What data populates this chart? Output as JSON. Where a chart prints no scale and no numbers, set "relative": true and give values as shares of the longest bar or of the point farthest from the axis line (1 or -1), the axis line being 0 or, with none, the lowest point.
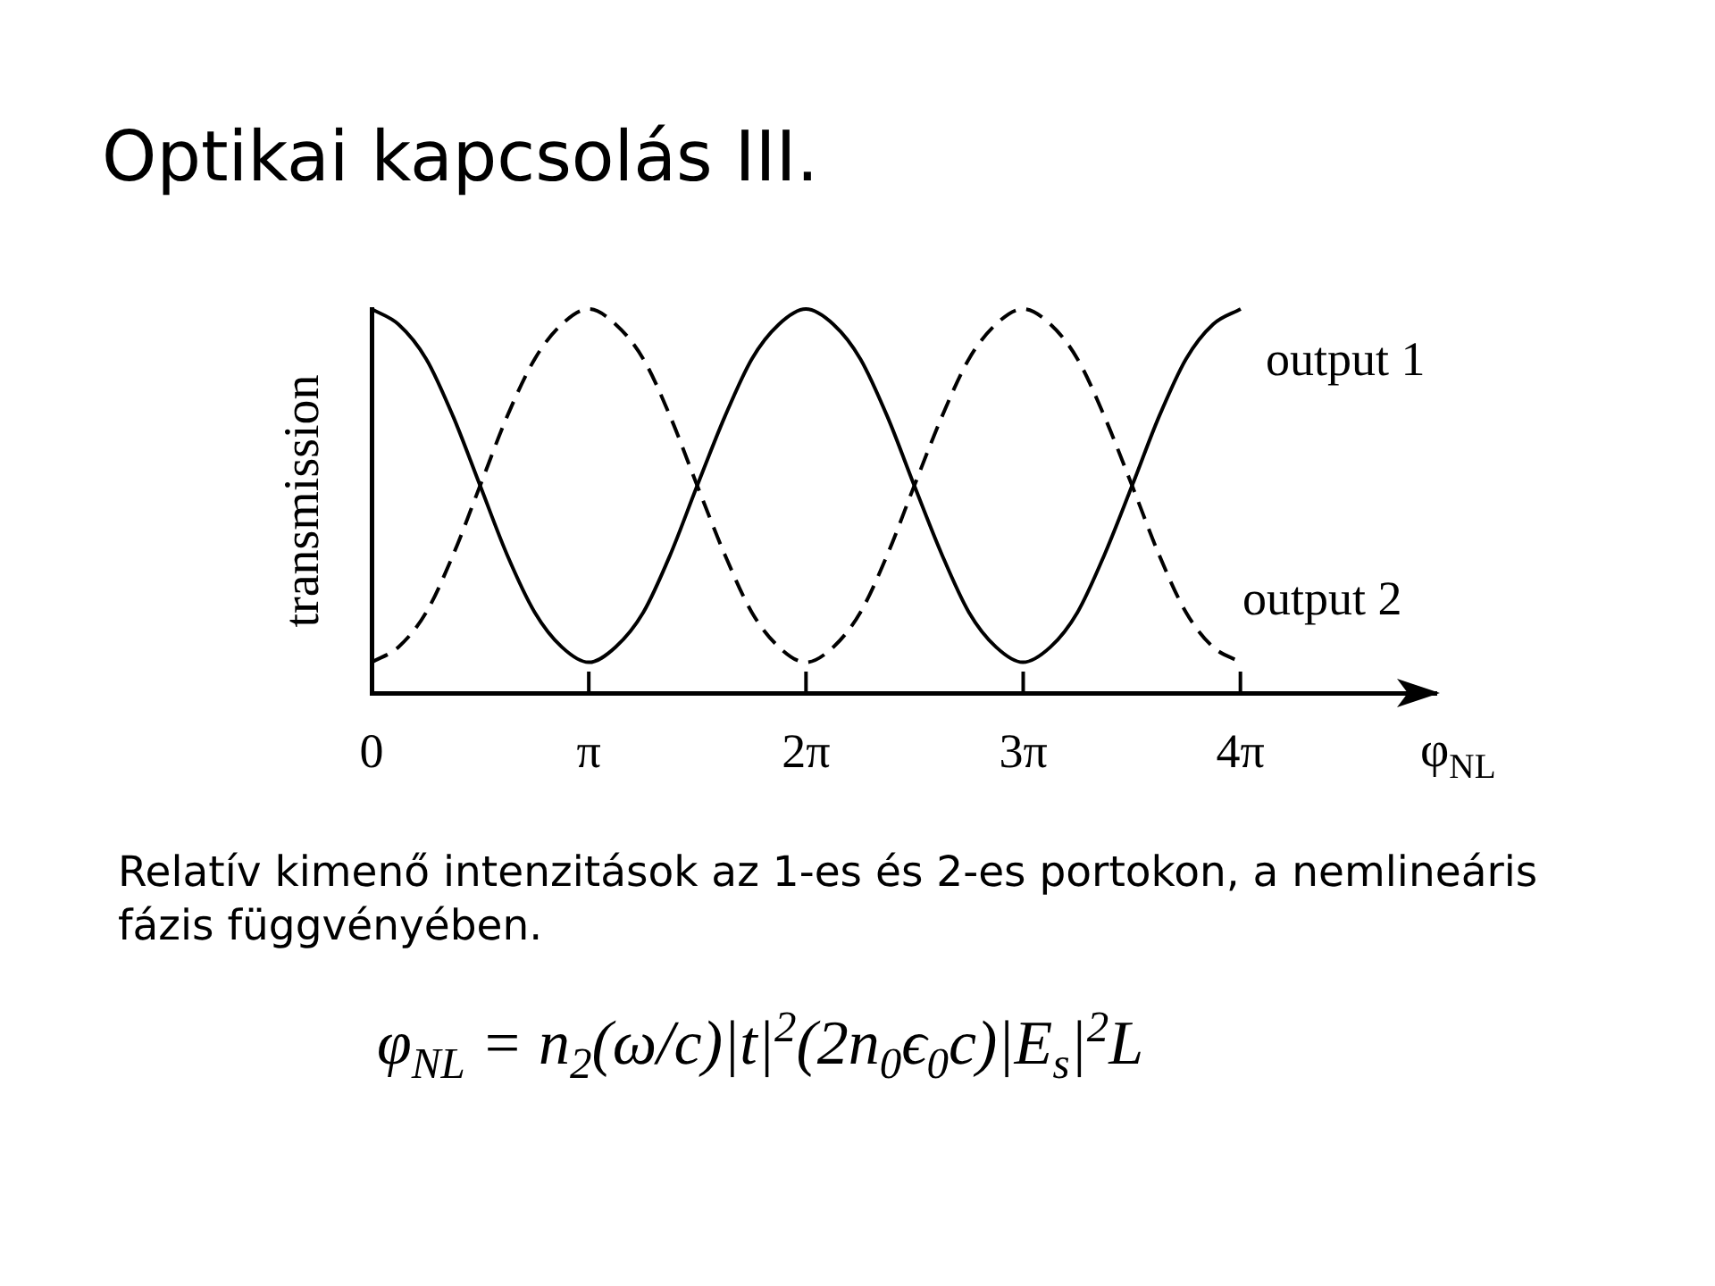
{
  "chart_data": {
    "type": "line",
    "title": "Optikai kapcsolás III.",
    "xlabel": "φ$_{NL}$",
    "ylabel": "transmission",
    "annotations": [
      "Relatív kimenő intenzitások az 1-es és 2-es portokon, a nemlineáris fázis függvényében.",
      "φ$_{NL}$ = n$_{2}$(ω/c)|t|$^{2}$(2n$_{0}$ϵ$_{0}$c)|E$_{s}$|$^{2}$L"
    ],
    "x": [
      0,
      0.39,
      0.79,
      1.18,
      1.57,
      1.96,
      2.36,
      2.75,
      3.14,
      3.53,
      3.93,
      4.32,
      4.71,
      5.11,
      5.5,
      5.89,
      6.28,
      6.68,
      7.07,
      7.46,
      7.85,
      8.25,
      8.64,
      9.03,
      9.42,
      9.82,
      10.21,
      10.6,
      11,
      11.39,
      11.78,
      12.17,
      12.57
    ],
    "xlim": [
      0,
      15.4
    ],
    "xticks": [
      0,
      {
        "value": 3.1416,
        "label": "π"
      },
      {
        "value": 6.2832,
        "label": "2π"
      },
      {
        "value": 9.4248,
        "label": "3π"
      },
      {
        "value": 12.5664,
        "label": "4π"
      }
    ],
    "relative": true,
    "series": [
      {
        "name": "output 1",
        "color": "#000000",
        "line_style": "solid",
        "values": [
          1.0,
          0.96,
          0.87,
          0.72,
          0.54,
          0.36,
          0.21,
          0.12,
          0.08,
          0.12,
          0.21,
          0.36,
          0.54,
          0.72,
          0.87,
          0.96,
          1.0,
          0.96,
          0.87,
          0.72,
          0.54,
          0.36,
          0.21,
          0.12,
          0.08,
          0.12,
          0.21,
          0.36,
          0.54,
          0.72,
          0.87,
          0.96,
          1.0
        ]
      },
      {
        "name": "output 2",
        "color": "#000000",
        "line_style": "dashed",
        "values": [
          0.08,
          0.12,
          0.21,
          0.36,
          0.54,
          0.72,
          0.87,
          0.96,
          1.0,
          0.96,
          0.87,
          0.72,
          0.54,
          0.36,
          0.21,
          0.12,
          0.08,
          0.12,
          0.21,
          0.36,
          0.54,
          0.72,
          0.87,
          0.96,
          1.0,
          0.96,
          0.87,
          0.72,
          0.54,
          0.36,
          0.21,
          0.12,
          0.08
        ]
      }
    ],
    "legend": false,
    "grid": false,
    "marker": "none",
    "tick_labels": "x"
  }
}
